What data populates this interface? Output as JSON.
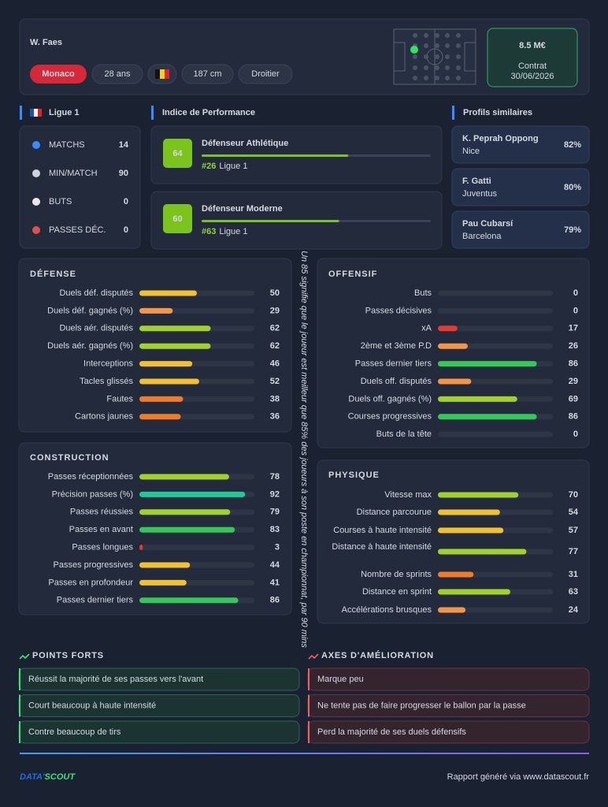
{
  "header": {
    "name": "W. Faes",
    "club": "Monaco",
    "age": "28 ans",
    "height": "187 cm",
    "foot": "Droitier",
    "market_value": "8.5 M€",
    "contract_label": "Contrat",
    "contract_end": "30/06/2026"
  },
  "league": {
    "name": "Ligue 1",
    "stats": [
      {
        "label": "MATCHS",
        "value": 14
      },
      {
        "label": "MIN/MATCH",
        "value": 90
      },
      {
        "label": "BUTS",
        "value": 0
      },
      {
        "label": "PASSES DÉC.",
        "value": 0
      }
    ]
  },
  "performance": {
    "title": "Indice de Performance",
    "range": [
      0,
      100
    ],
    "profiles": [
      {
        "score": 64,
        "name": "Défenseur Athlétique",
        "rank": "#26",
        "league": "Ligue 1"
      },
      {
        "score": 60,
        "name": "Défenseur Moderne",
        "rank": "#63",
        "league": "Ligue 1"
      }
    ]
  },
  "similar": {
    "title": "Profils similaires",
    "players": [
      {
        "name": "K. Peprah Oppong",
        "club": "Nice",
        "similarity": "82%"
      },
      {
        "name": "F. Gatti",
        "club": "Juventus",
        "similarity": "80%"
      },
      {
        "name": "Pau Cubarsí",
        "club": "Barcelona",
        "similarity": "79%"
      }
    ]
  },
  "percentile_range": [
    0,
    100
  ],
  "sections": [
    {
      "title": "DÉFENSE",
      "rows": [
        {
          "label": "Duels déf. disputés",
          "value": 50,
          "color": "#f2c12e"
        },
        {
          "label": "Duels déf. gagnés (%)",
          "value": 29,
          "color": "#f5954a"
        },
        {
          "label": "Duels aér. disputés",
          "value": 62,
          "color": "#a3d12a"
        },
        {
          "label": "Duels aér. gagnés (%)",
          "value": 62,
          "color": "#a3d12a"
        },
        {
          "label": "Interceptions",
          "value": 46,
          "color": "#f2c12e"
        },
        {
          "label": "Tacles glissés",
          "value": 52,
          "color": "#f2c12e"
        },
        {
          "label": "Fautes",
          "value": 38,
          "color": "#f07c2a"
        },
        {
          "label": "Cartons jaunes",
          "value": 36,
          "color": "#f07c2a"
        }
      ]
    },
    {
      "title": "CONSTRUCTION",
      "rows": [
        {
          "label": "Passes réceptionnées",
          "value": 78,
          "color": "#a3d12a"
        },
        {
          "label": "Précision passes (%)",
          "value": 92,
          "color": "#20c997"
        },
        {
          "label": "Passes réussies",
          "value": 79,
          "color": "#a3d12a"
        },
        {
          "label": "Passes en avant",
          "value": 83,
          "color": "#34c759"
        },
        {
          "label": "Passes longues",
          "value": 3,
          "color": "#e53935"
        },
        {
          "label": "Passes progressives",
          "value": 44,
          "color": "#f2c12e"
        },
        {
          "label": "Passes en profondeur",
          "value": 41,
          "color": "#f2c12e"
        },
        {
          "label": "Passes dernier tiers",
          "value": 86,
          "color": "#34c759"
        }
      ]
    },
    {
      "title": "OFFENSIF",
      "rows": [
        {
          "label": "Buts",
          "value": 0,
          "color": "#e53935"
        },
        {
          "label": "Passes décisives",
          "value": 0,
          "color": "#e53935"
        },
        {
          "label": "xA",
          "value": 17,
          "color": "#e53935"
        },
        {
          "label": "2ème et 3ème P.D",
          "value": 26,
          "color": "#f5954a"
        },
        {
          "label": "Passes dernier tiers",
          "value": 86,
          "color": "#34c759"
        },
        {
          "label": "Duels off. disputés",
          "value": 29,
          "color": "#f5954a"
        },
        {
          "label": "Duels off. gagnés (%)",
          "value": 69,
          "color": "#a3d12a"
        },
        {
          "label": "Courses progressives",
          "value": 86,
          "color": "#34c759"
        },
        {
          "label": "Buts de la tête",
          "value": 0,
          "color": "#e53935"
        }
      ]
    },
    {
      "title": "PHYSIQUE",
      "rows": [
        {
          "label": "Vitesse max",
          "value": 70,
          "color": "#a3d12a"
        },
        {
          "label": "Distance parcourue",
          "value": 54,
          "color": "#f2c12e"
        },
        {
          "label": "Courses à haute intensité",
          "value": 57,
          "color": "#f2c12e"
        },
        {
          "label": "Distance à haute intensité",
          "value": 77,
          "color": "#a3d12a"
        },
        {
          "label": "Nombre de sprints",
          "value": 31,
          "color": "#f07c2a"
        },
        {
          "label": "Distance en sprint",
          "value": 63,
          "color": "#a3d12a"
        },
        {
          "label": "Accélérations brusques",
          "value": 24,
          "color": "#f5954a"
        }
      ]
    }
  ],
  "note": "Un 85 signifie que le joueur est meilleur que 85% des joueurs à son poste en championnat, par 90 mins",
  "strengths": {
    "title": "POINTS FORTS",
    "items": [
      "Réussit la majorité de ses passes vers l'avant",
      "Court beaucoup à haute intensité",
      "Contre beaucoup de tirs"
    ]
  },
  "improvements": {
    "title": "AXES D'AMÉLIORATION",
    "items": [
      "Marque peu",
      "Ne tente pas de faire progresser le ballon par la passe",
      "Perd la majorité de ses duels défensifs"
    ]
  },
  "footer": {
    "logo_left": "DATA'",
    "logo_right": "SCOUT",
    "credit": "Rapport généré via www.datascout.fr"
  }
}
